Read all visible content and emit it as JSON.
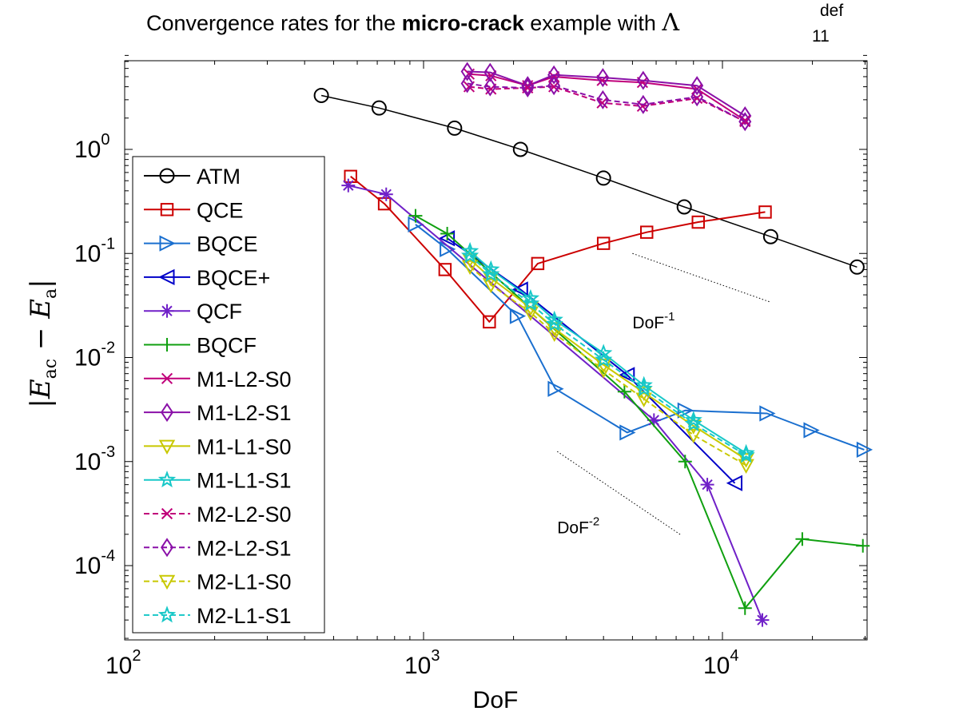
{
  "chart_data": {
    "type": "line",
    "title_prefix": "Convergence rates for the",
    "title_bold": "micro-crack",
    "title_suffix": "example with",
    "title_symbol": "Λ",
    "title_sup": "def",
    "title_sub": "11",
    "xlabel": "DoF",
    "ylabel": "|E_ac − E_a|",
    "ylabel_main": "|E",
    "ylabel_sub1": "ac",
    "ylabel_mid": " − E",
    "ylabel_sub2": "a",
    "ylabel_end": "|",
    "xscale": "log",
    "yscale": "log",
    "xlim": [
      100,
      30000
    ],
    "ylim": [
      2e-05,
      8
    ],
    "xticks": [
      {
        "base": "10",
        "exp": "2",
        "value": 100
      },
      {
        "base": "10",
        "exp": "3",
        "value": 1000
      },
      {
        "base": "10",
        "exp": "4",
        "value": 10000
      }
    ],
    "yticks": [
      {
        "base": "10",
        "exp": "-4",
        "value": 0.0001
      },
      {
        "base": "10",
        "exp": "-3",
        "value": 0.001
      },
      {
        "base": "10",
        "exp": "-2",
        "value": 0.01
      },
      {
        "base": "10",
        "exp": "-1",
        "value": 0.1
      },
      {
        "base": "10",
        "exp": "0",
        "value": 1
      }
    ],
    "legend_position": "left",
    "series": [
      {
        "name": "ATM",
        "color": "#000000",
        "marker": "circle",
        "dash": false,
        "x": [
          455,
          710,
          1270,
          2110,
          4000,
          7450,
          14500,
          28200
        ],
        "y": [
          3.3,
          2.5,
          1.6,
          1.0,
          0.53,
          0.28,
          0.145,
          0.074
        ]
      },
      {
        "name": "QCE",
        "color": "#cc0000",
        "marker": "square",
        "dash": false,
        "x": [
          570,
          740,
          1180,
          1660,
          2410,
          4000,
          5580,
          8300,
          13900
        ],
        "y": [
          0.55,
          0.3,
          0.07,
          0.022,
          0.08,
          0.125,
          0.16,
          0.2,
          0.25
        ]
      },
      {
        "name": "BQCE",
        "color": "#1a6fcf",
        "marker": "triangle-right",
        "dash": false,
        "x": [
          940,
          1200,
          2060,
          2760,
          4800,
          7500,
          14100,
          19800,
          29800
        ],
        "y": [
          0.19,
          0.11,
          0.025,
          0.005,
          0.0019,
          0.0031,
          0.0029,
          0.002,
          0.0013
        ]
      },
      {
        "name": "BQCE+",
        "color": "#0000c8",
        "marker": "triangle-left",
        "dash": false,
        "x": [
          1200,
          2110,
          4800,
          11000
        ],
        "y": [
          0.14,
          0.045,
          0.0068,
          0.00062
        ]
      },
      {
        "name": "QCF",
        "color": "#7020c8",
        "marker": "star",
        "dash": false,
        "x": [
          560,
          750,
          5900,
          8900,
          13600
        ],
        "y": [
          0.45,
          0.37,
          0.0025,
          0.0006,
          3e-05
        ]
      },
      {
        "name": "BQCF",
        "color": "#10a010",
        "marker": "plus",
        "dash": false,
        "x": [
          940,
          1200,
          4700,
          7500,
          11900,
          18500,
          29500
        ],
        "y": [
          0.23,
          0.155,
          0.0047,
          0.001,
          3.9e-05,
          0.00018,
          0.000155
        ]
      },
      {
        "name": "M1-L2-S0",
        "color": "#c0007a",
        "marker": "x",
        "dash": false,
        "x": [
          1420,
          1680,
          2230,
          2730,
          3960,
          5400,
          8220,
          11900
        ],
        "y": [
          5.3,
          5.1,
          4.1,
          5.0,
          4.6,
          4.4,
          3.8,
          1.9
        ]
      },
      {
        "name": "M1-L2-S1",
        "color": "#8a10a8",
        "marker": "diamond",
        "dash": false,
        "x": [
          1400,
          1670,
          2230,
          2730,
          3980,
          5430,
          8220,
          11900
        ],
        "y": [
          5.6,
          5.5,
          4.1,
          5.2,
          4.9,
          4.6,
          4.1,
          2.1
        ]
      },
      {
        "name": "M1-L1-S0",
        "color": "#c8c800",
        "marker": "triangle-down",
        "dash": false,
        "x": [
          1430,
          1680,
          2280,
          2740,
          4000,
          5460,
          8000,
          12000
        ],
        "y": [
          0.088,
          0.058,
          0.03,
          0.019,
          0.0085,
          0.0046,
          0.0022,
          0.00105
        ]
      },
      {
        "name": "M1-L1-S1",
        "color": "#18c8c8",
        "marker": "pentagram",
        "dash": false,
        "x": [
          1430,
          1680,
          2280,
          2740,
          4000,
          5460,
          8000,
          12000
        ],
        "y": [
          0.105,
          0.07,
          0.037,
          0.023,
          0.011,
          0.0054,
          0.0025,
          0.0012
        ]
      },
      {
        "name": "M2-L2-S0",
        "color": "#c0007a",
        "marker": "x",
        "dash": true,
        "x": [
          1420,
          1680,
          2230,
          2730,
          3960,
          5400,
          8220,
          11900
        ],
        "y": [
          4.0,
          3.8,
          3.9,
          4.0,
          2.8,
          2.6,
          3.1,
          1.85
        ]
      },
      {
        "name": "M2-L2-S1",
        "color": "#8a10a8",
        "marker": "diamond",
        "dash": true,
        "x": [
          1400,
          1670,
          2230,
          2730,
          3980,
          5430,
          8220,
          11900
        ],
        "y": [
          4.3,
          4.0,
          3.9,
          4.1,
          3.0,
          2.7,
          3.2,
          1.85
        ]
      },
      {
        "name": "M2-L1-S0",
        "color": "#c8c800",
        "marker": "triangle-down",
        "dash": true,
        "x": [
          1430,
          1680,
          2280,
          2740,
          4000,
          5460,
          8000,
          12000
        ],
        "y": [
          0.075,
          0.05,
          0.027,
          0.017,
          0.0076,
          0.004,
          0.0018,
          0.00092
        ]
      },
      {
        "name": "M2-L1-S1",
        "color": "#18c8c8",
        "marker": "pentagram",
        "dash": true,
        "x": [
          1430,
          1680,
          2280,
          2740,
          4000,
          5460,
          8000,
          12000
        ],
        "y": [
          0.095,
          0.063,
          0.033,
          0.021,
          0.0095,
          0.005,
          0.0023,
          0.00115
        ]
      }
    ],
    "slope_guides": [
      {
        "label_base": "DoF",
        "label_exp": "-1",
        "x": [
          5000,
          14500
        ],
        "y": [
          0.1,
          0.034
        ],
        "label_x": 5000,
        "label_y": 0.019
      },
      {
        "label_base": "DoF",
        "label_exp": "-2",
        "x": [
          2800,
          7300
        ],
        "y": [
          0.00125,
          0.000195
        ],
        "label_x": 2800,
        "label_y": 0.000205
      }
    ]
  }
}
